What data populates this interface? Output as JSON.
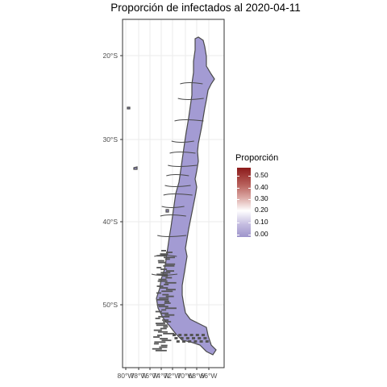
{
  "title": "Proporción de infectados al 2020-04-11",
  "colors": {
    "region_fill": "#a39bd3",
    "region_border": "#4a4a4a",
    "grid": "#ebebeb",
    "panel_border": "#333333"
  },
  "axes": {
    "y_labels": [
      "20°S",
      "30°S",
      "40°S",
      "50°S"
    ],
    "x_labels": [
      "80°W",
      "78°W",
      "76°W",
      "74°W",
      "72°W",
      "70°W",
      "68°W",
      "66°W"
    ]
  },
  "legend": {
    "title": "Proporción",
    "labels": [
      "0.50",
      "0.40",
      "0.30",
      "0.20",
      "0.10",
      "0.00"
    ]
  }
}
